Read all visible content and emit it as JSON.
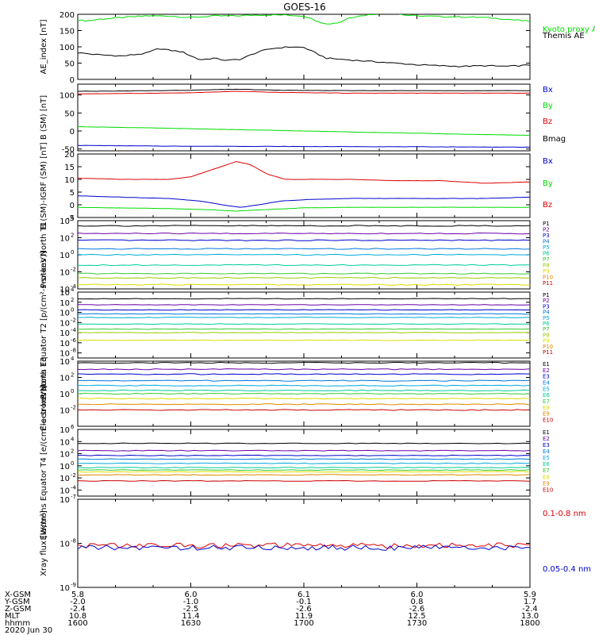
{
  "title": "GOES-16",
  "date": "2020 Jun 30",
  "colors": {
    "black": "#000000",
    "green": "#00dd00",
    "red": "#dd0000",
    "blue": "#0000cc",
    "P1": "#000000",
    "P2": "#6a00a8",
    "P3": "#0000cc",
    "P4": "#0077dd",
    "P5": "#00aadd",
    "P6": "#00cc99",
    "P7": "#33cc33",
    "P8": "#99cc00",
    "P9": "#dddd00",
    "P10": "#dd8800",
    "P11": "#cc0000"
  },
  "orbit_table": {
    "rows": [
      {
        "label": "X-GSM",
        "values": [
          "5.8",
          "6.0",
          "6.1",
          "6.0",
          "5.9"
        ]
      },
      {
        "label": "Y-GSM",
        "values": [
          "-2.0",
          "-1.0",
          "-0.1",
          "0.8",
          "1.7"
        ]
      },
      {
        "label": "Z-GSM",
        "values": [
          "-2.4",
          "-2.5",
          "-2.6",
          "-2.6",
          "-2.4"
        ]
      },
      {
        "label": "MLT",
        "values": [
          "10.8",
          "11.4",
          "11.9",
          "12.5",
          "13.0"
        ]
      },
      {
        "label": "hhmm",
        "values": [
          "1600",
          "1630",
          "1700",
          "1730",
          "1800"
        ]
      }
    ]
  },
  "chart_data": [
    {
      "type": "line",
      "ylabel": "AE_index [nT]",
      "ylim": [
        0,
        200
      ],
      "yticks": [
        0,
        50,
        100,
        150,
        200
      ],
      "ytick_labels": [
        "0",
        "50",
        "100",
        "150",
        "200"
      ],
      "x_hhmm": [
        1600,
        1800
      ],
      "series": [
        {
          "name": "Kyoto proxy AE",
          "color": "green",
          "x": [
            0,
            0.02,
            0.05,
            0.1,
            0.15,
            0.2,
            0.25,
            0.3,
            0.35,
            0.4,
            0.45,
            0.5,
            0.55,
            0.58,
            0.6,
            0.65,
            0.7,
            0.72,
            0.75,
            0.8,
            0.85,
            0.9,
            0.95,
            1.0
          ],
          "y": [
            182,
            180,
            185,
            190,
            195,
            195,
            190,
            195,
            195,
            198,
            198,
            195,
            170,
            175,
            190,
            200,
            205,
            198,
            195,
            193,
            192,
            190,
            185,
            178
          ]
        },
        {
          "name": "Themis AE",
          "color": "black",
          "x": [
            0,
            0.05,
            0.1,
            0.15,
            0.18,
            0.2,
            0.23,
            0.27,
            0.3,
            0.33,
            0.36,
            0.4,
            0.43,
            0.47,
            0.5,
            0.55,
            0.6,
            0.65,
            0.7,
            0.75,
            0.8,
            0.85,
            0.9,
            0.95,
            1.0
          ],
          "y": [
            82,
            75,
            72,
            80,
            95,
            90,
            85,
            60,
            65,
            58,
            62,
            85,
            95,
            100,
            98,
            65,
            60,
            55,
            50,
            45,
            42,
            40,
            42,
            40,
            44
          ]
        }
      ]
    },
    {
      "type": "line",
      "ylabel": "B (SM) [nT]",
      "ylim": [
        -55,
        130
      ],
      "yticks": [
        -50,
        0,
        50,
        100
      ],
      "ytick_labels": [
        "-50",
        "0",
        "50",
        "100"
      ],
      "series": [
        {
          "name": "Bx",
          "color": "blue",
          "x": [
            0,
            0.2,
            0.5,
            0.8,
            1.0
          ],
          "y": [
            -40,
            -42,
            -43,
            -44,
            -45
          ]
        },
        {
          "name": "By",
          "color": "green",
          "x": [
            0,
            0.1,
            0.3,
            0.5,
            0.7,
            0.9,
            1.0
          ],
          "y": [
            12,
            10,
            5,
            0,
            -5,
            -10,
            -12
          ]
        },
        {
          "name": "Bz",
          "color": "red",
          "x": [
            0,
            0.1,
            0.25,
            0.35,
            0.45,
            0.6,
            0.8,
            1.0
          ],
          "y": [
            103,
            104,
            106,
            110,
            107,
            105,
            105,
            105
          ]
        },
        {
          "name": "Bmag",
          "color": "black",
          "x": [
            0,
            0.1,
            0.25,
            0.35,
            0.45,
            0.6,
            0.8,
            1.0
          ],
          "y": [
            110,
            111,
            113,
            116,
            113,
            112,
            112,
            112
          ]
        }
      ]
    },
    {
      "type": "line",
      "ylabel": "B (SM)-IGRF (SM) [nT]",
      "ylim": [
        -5,
        20
      ],
      "yticks": [
        -5,
        0,
        5,
        10,
        15,
        20
      ],
      "ytick_labels": [
        "-5",
        "0",
        "5",
        "10",
        "15",
        "20"
      ],
      "series": [
        {
          "name": "Bx",
          "color": "blue",
          "x": [
            0,
            0.1,
            0.2,
            0.27,
            0.32,
            0.36,
            0.4,
            0.45,
            0.5,
            0.6,
            0.7,
            0.8,
            0.9,
            1.0
          ],
          "y": [
            3.5,
            3.0,
            2.5,
            1.5,
            0,
            -1,
            0,
            1.5,
            2,
            2.5,
            2.5,
            2.5,
            2.5,
            3
          ]
        },
        {
          "name": "By",
          "color": "green",
          "x": [
            0,
            0.2,
            0.3,
            0.35,
            0.4,
            0.5,
            0.6,
            0.8,
            1.0
          ],
          "y": [
            -1,
            -1.5,
            -2,
            -2.5,
            -2,
            -1.2,
            -1,
            -1,
            -1
          ]
        },
        {
          "name": "Bz",
          "color": "red",
          "x": [
            0,
            0.1,
            0.2,
            0.25,
            0.3,
            0.35,
            0.38,
            0.42,
            0.46,
            0.5,
            0.6,
            0.7,
            0.8,
            0.9,
            1.0
          ],
          "y": [
            10.5,
            10,
            10,
            11,
            14,
            17,
            16,
            12,
            10,
            10,
            10,
            9.5,
            9.5,
            8.5,
            9
          ]
        }
      ]
    },
    {
      "type": "line",
      "scale": "log",
      "ylabel": "Protons North T1",
      "ylim_exp": [
        -4,
        4
      ],
      "ytick_exps": [
        -4,
        -2,
        0,
        2,
        4
      ],
      "ytick_labels": [
        "10",
        "10",
        "10",
        "10",
        "10"
      ],
      "ytick_superscripts": [
        "-4",
        "-2",
        "0",
        "2",
        "4"
      ],
      "series": [
        {
          "name": "P1",
          "color": "P1",
          "level_exp": 3.4
        },
        {
          "name": "P2",
          "color": "P2",
          "level_exp": 2.5
        },
        {
          "name": "P3",
          "color": "P3",
          "level_exp": 1.7
        },
        {
          "name": "P4",
          "color": "P4",
          "level_exp": 0.7
        },
        {
          "name": "P5",
          "color": "P5",
          "level_exp": 0.0
        },
        {
          "name": "P6",
          "color": "P6",
          "level_exp": -1.2
        },
        {
          "name": "P7",
          "color": "P7",
          "level_exp": -2.2
        },
        {
          "name": "P8",
          "color": "P8",
          "level_exp": -2.7
        },
        {
          "name": "P9",
          "color": "P9",
          "level_exp": -3.5
        },
        {
          "name": "P10",
          "color": "P10",
          "level_exp": -5
        },
        {
          "name": "P11",
          "color": "P11",
          "level_exp": -5
        }
      ]
    },
    {
      "type": "line",
      "scale": "log",
      "ylabel": "Protons Equator T2 [p/(cm²-s-sr-keV)]",
      "ylim_exp": [
        -9,
        4
      ],
      "ytick_exps": [
        -8,
        -6,
        -4,
        -2,
        0,
        2,
        4
      ],
      "ytick_labels": [
        "10",
        "10",
        "10",
        "10",
        "10",
        "10",
        "10"
      ],
      "ytick_superscripts": [
        "-8",
        "-6",
        "-4",
        "-2",
        "0",
        "2",
        "4"
      ],
      "series": [
        {
          "name": "P1",
          "color": "P1",
          "level_exp": 2.7
        },
        {
          "name": "P2",
          "color": "P2",
          "level_exp": 1.5
        },
        {
          "name": "P3",
          "color": "P3",
          "level_exp": 0.5
        },
        {
          "name": "P4",
          "color": "P4",
          "level_exp": -0.3
        },
        {
          "name": "P5",
          "color": "P5",
          "level_exp": -1.0
        },
        {
          "name": "P6",
          "color": "P6",
          "level_exp": -2.3
        },
        {
          "name": "P7",
          "color": "P7",
          "level_exp": -3.3
        },
        {
          "name": "P8",
          "color": "P8",
          "level_exp": -4.0
        },
        {
          "name": "P9",
          "color": "P9",
          "level_exp": -5.5
        },
        {
          "name": "P10",
          "color": "P10",
          "level_exp": -10
        },
        {
          "name": "P11",
          "color": "P11",
          "level_exp": -10
        }
      ]
    },
    {
      "type": "line",
      "scale": "log",
      "ylabel": "Electrons North T3",
      "ylim_exp": [
        -4,
        4
      ],
      "ytick_exps": [
        -2,
        0,
        2,
        4
      ],
      "ytick_labels": [
        "10",
        "10",
        "10",
        "10"
      ],
      "ytick_superscripts": [
        "-2",
        "0",
        "2",
        "4"
      ],
      "series": [
        {
          "name": "E1",
          "color": "P1",
          "level_exp": 3.8
        },
        {
          "name": "E2",
          "color": "P2",
          "level_exp": 3.0
        },
        {
          "name": "E3",
          "color": "P3",
          "level_exp": 2.4
        },
        {
          "name": "E4",
          "color": "P4",
          "level_exp": 1.6
        },
        {
          "name": "E5",
          "color": "P5",
          "level_exp": 1.0
        },
        {
          "name": "E6",
          "color": "P6",
          "level_exp": 0.4
        },
        {
          "name": "E7",
          "color": "P7",
          "level_exp": 0.0
        },
        {
          "name": "E8",
          "color": "P9",
          "level_exp": -0.6
        },
        {
          "name": "E9",
          "color": "P10",
          "level_exp": -1.3
        },
        {
          "name": "E10",
          "color": "P11",
          "level_exp": -2.0
        }
      ]
    },
    {
      "type": "line",
      "scale": "log",
      "ylabel": "Electrons Equator T4 [e/(cm²-s-sr-keV)]",
      "ylim_exp": [
        -5,
        6
      ],
      "ytick_exps": [
        -4,
        -2,
        0,
        2,
        4,
        6
      ],
      "ytick_labels": [
        "10",
        "10",
        "10",
        "10",
        "10",
        "10"
      ],
      "ytick_superscripts": [
        "-4",
        "-2",
        "0",
        "2",
        "4",
        "6"
      ],
      "series": [
        {
          "name": "E1",
          "color": "P1",
          "level_exp": 3.7
        },
        {
          "name": "E2",
          "color": "P2",
          "level_exp": 2.5
        },
        {
          "name": "E3",
          "color": "P3",
          "level_exp": 1.7
        },
        {
          "name": "E4",
          "color": "P4",
          "level_exp": 1.1
        },
        {
          "name": "E5",
          "color": "P5",
          "level_exp": 0.4
        },
        {
          "name": "E6",
          "color": "P6",
          "level_exp": -0.3
        },
        {
          "name": "E7",
          "color": "P7",
          "level_exp": -0.7
        },
        {
          "name": "E8",
          "color": "P9",
          "level_exp": -1.0
        },
        {
          "name": "E9",
          "color": "P10",
          "level_exp": -1.5
        },
        {
          "name": "E10",
          "color": "P11",
          "level_exp": -2.5
        }
      ]
    },
    {
      "type": "line",
      "scale": "log",
      "ylabel": "Xray flux [W/m²]",
      "ylim_exp": [
        -9,
        -7
      ],
      "ytick_exps": [
        -9,
        -8,
        -7
      ],
      "ytick_labels": [
        "10",
        "10",
        "10"
      ],
      "ytick_superscripts": [
        "-9",
        "-8",
        "-7"
      ],
      "series": [
        {
          "name": "0.1-0.8 nm",
          "color": "red",
          "level_exp": -8.05
        },
        {
          "name": "0.05-0.4 nm",
          "color": "blue",
          "level_exp": -8.1
        }
      ]
    }
  ]
}
